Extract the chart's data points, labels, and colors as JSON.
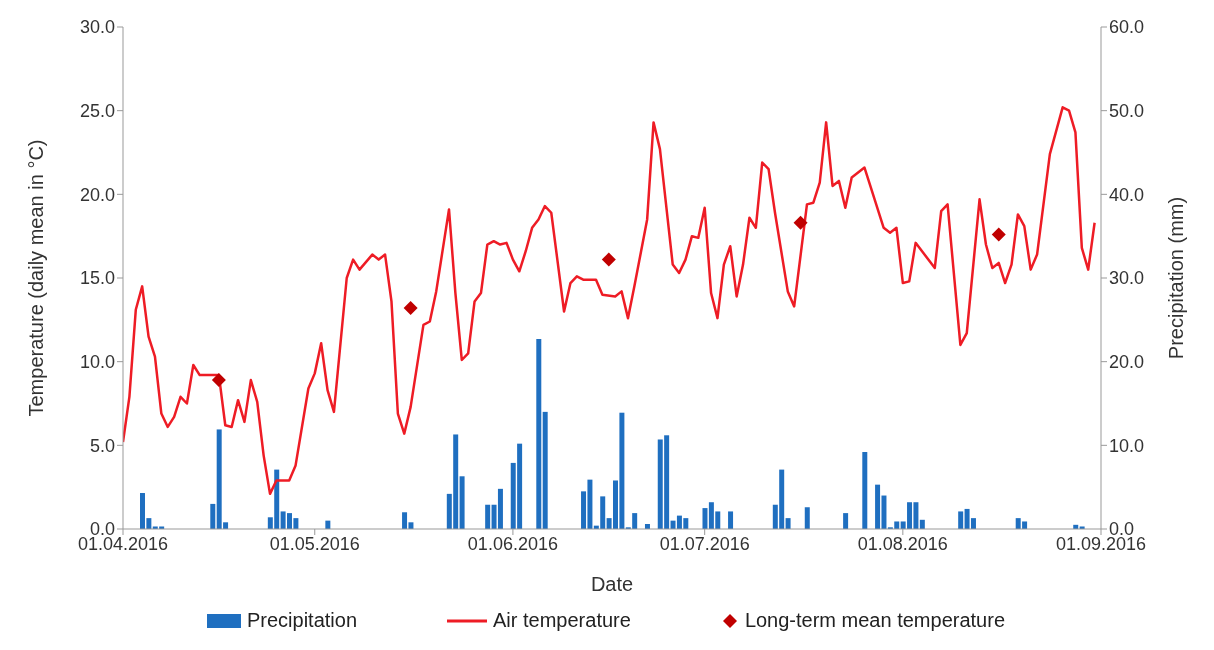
{
  "chart_data": {
    "type": "line",
    "xlabel": "Date",
    "ylabel": "Temperature (daily mean in °C)",
    "y2label": "Precipitation (mm)",
    "xlim": [
      "2016-04-01",
      "2016-09-01"
    ],
    "xticks": [
      {
        "value": "2016-04-01",
        "label": "01.04.2016"
      },
      {
        "value": "2016-05-01",
        "label": "01.05.2016"
      },
      {
        "value": "2016-06-01",
        "label": "01.06.2016"
      },
      {
        "value": "2016-07-01",
        "label": "01.07.2016"
      },
      {
        "value": "2016-08-01",
        "label": "01.08.2016"
      },
      {
        "value": "2016-09-01",
        "label": "01.09.2016"
      }
    ],
    "ylim": [
      0,
      30
    ],
    "yticks": [
      {
        "value": 0,
        "label": "0.0"
      },
      {
        "value": 5,
        "label": "5.0"
      },
      {
        "value": 10,
        "label": "10.0"
      },
      {
        "value": 15,
        "label": "15.0"
      },
      {
        "value": 20,
        "label": "20.0"
      },
      {
        "value": 25,
        "label": "25.0"
      },
      {
        "value": 30,
        "label": "30.0"
      }
    ],
    "y2lim": [
      0,
      60
    ],
    "y2ticks": [
      {
        "value": 0,
        "label": "0.0"
      },
      {
        "value": 10,
        "label": "10.0"
      },
      {
        "value": 20,
        "label": "20.0"
      },
      {
        "value": 30,
        "label": "30.0"
      },
      {
        "value": 40,
        "label": "40.0"
      },
      {
        "value": 50,
        "label": "50.0"
      },
      {
        "value": 60,
        "label": "60.0"
      }
    ],
    "grid": false,
    "legend": "bottom",
    "series": [
      {
        "name": "Precipitation",
        "type": "bar",
        "axis": "y2",
        "color": "#1f6fc0",
        "x": [
          "2016-04-04",
          "2016-04-05",
          "2016-04-06",
          "2016-04-07",
          "2016-04-15",
          "2016-04-16",
          "2016-04-17",
          "2016-04-24",
          "2016-04-25",
          "2016-04-26",
          "2016-04-27",
          "2016-04-28",
          "2016-05-03",
          "2016-05-15",
          "2016-05-16",
          "2016-05-22",
          "2016-05-23",
          "2016-05-24",
          "2016-05-28",
          "2016-05-29",
          "2016-05-30",
          "2016-06-01",
          "2016-06-02",
          "2016-06-05",
          "2016-06-06",
          "2016-06-12",
          "2016-06-13",
          "2016-06-14",
          "2016-06-15",
          "2016-06-16",
          "2016-06-17",
          "2016-06-18",
          "2016-06-19",
          "2016-06-20",
          "2016-06-22",
          "2016-06-24",
          "2016-06-25",
          "2016-06-26",
          "2016-06-27",
          "2016-06-28",
          "2016-07-01",
          "2016-07-02",
          "2016-07-03",
          "2016-07-05",
          "2016-07-12",
          "2016-07-13",
          "2016-07-14",
          "2016-07-17",
          "2016-07-23",
          "2016-07-26",
          "2016-07-28",
          "2016-07-29",
          "2016-07-30",
          "2016-07-31",
          "2016-08-01",
          "2016-08-02",
          "2016-08-03",
          "2016-08-04",
          "2016-08-10",
          "2016-08-11",
          "2016-08-12",
          "2016-08-19",
          "2016-08-20",
          "2016-08-28",
          "2016-08-29"
        ],
        "values": [
          4.3,
          1.3,
          0.3,
          0.3,
          3.0,
          11.9,
          0.8,
          1.4,
          7.1,
          2.1,
          1.9,
          1.3,
          1.0,
          2.0,
          0.8,
          4.2,
          11.3,
          6.3,
          2.9,
          2.9,
          4.8,
          7.9,
          10.2,
          22.7,
          14.0,
          4.5,
          5.9,
          0.4,
          3.9,
          1.3,
          5.8,
          13.9,
          0.2,
          1.9,
          0.6,
          10.7,
          11.2,
          1.0,
          1.6,
          1.3,
          2.5,
          3.2,
          2.1,
          2.1,
          2.9,
          7.1,
          1.3,
          2.6,
          1.9,
          9.2,
          5.3,
          4.0,
          0.2,
          0.9,
          0.9,
          3.2,
          3.2,
          1.1,
          2.1,
          2.4,
          1.3,
          1.3,
          0.9,
          0.5,
          0.3
        ]
      },
      {
        "name": "Air temperature",
        "color": "#ee1c25",
        "line_style": "solid",
        "marker": "none",
        "x": [
          "2016-04-01",
          "2016-04-02",
          "2016-04-03",
          "2016-04-04",
          "2016-04-05",
          "2016-04-06",
          "2016-04-07",
          "2016-04-08",
          "2016-04-09",
          "2016-04-10",
          "2016-04-11",
          "2016-04-12",
          "2016-04-13",
          "2016-04-14",
          "2016-04-16",
          "2016-04-17",
          "2016-04-18",
          "2016-04-19",
          "2016-04-20",
          "2016-04-21",
          "2016-04-22",
          "2016-04-23",
          "2016-04-24",
          "2016-04-25",
          "2016-04-27",
          "2016-04-28",
          "2016-04-30",
          "2016-05-01",
          "2016-05-02",
          "2016-05-03",
          "2016-05-04",
          "2016-05-06",
          "2016-05-07",
          "2016-05-08",
          "2016-05-10",
          "2016-05-11",
          "2016-05-12",
          "2016-05-13",
          "2016-05-14",
          "2016-05-15",
          "2016-05-16",
          "2016-05-18",
          "2016-05-19",
          "2016-05-20",
          "2016-05-22",
          "2016-05-23",
          "2016-05-24",
          "2016-05-25",
          "2016-05-26",
          "2016-05-27",
          "2016-05-28",
          "2016-05-29",
          "2016-05-30",
          "2016-05-31",
          "2016-06-01",
          "2016-06-02",
          "2016-06-03",
          "2016-06-04",
          "2016-06-05",
          "2016-06-06",
          "2016-06-07",
          "2016-06-09",
          "2016-06-10",
          "2016-06-11",
          "2016-06-12",
          "2016-06-14",
          "2016-06-15",
          "2016-06-17",
          "2016-06-18",
          "2016-06-19",
          "2016-06-20",
          "2016-06-22",
          "2016-06-23",
          "2016-06-24",
          "2016-06-26",
          "2016-06-27",
          "2016-06-28",
          "2016-06-29",
          "2016-06-30",
          "2016-07-01",
          "2016-07-02",
          "2016-07-03",
          "2016-07-04",
          "2016-07-05",
          "2016-07-06",
          "2016-07-07",
          "2016-07-08",
          "2016-07-09",
          "2016-07-10",
          "2016-07-11",
          "2016-07-12",
          "2016-07-14",
          "2016-07-15",
          "2016-07-17",
          "2016-07-18",
          "2016-07-19",
          "2016-07-20",
          "2016-07-21",
          "2016-07-22",
          "2016-07-23",
          "2016-07-24",
          "2016-07-26",
          "2016-07-27",
          "2016-07-29",
          "2016-07-30",
          "2016-07-31",
          "2016-08-01",
          "2016-08-02",
          "2016-08-03",
          "2016-08-06",
          "2016-08-07",
          "2016-08-08",
          "2016-08-10",
          "2016-08-11",
          "2016-08-13",
          "2016-08-14",
          "2016-08-15",
          "2016-08-16",
          "2016-08-17",
          "2016-08-18",
          "2016-08-19",
          "2016-08-20",
          "2016-08-21",
          "2016-08-22",
          "2016-08-24",
          "2016-08-26",
          "2016-08-27",
          "2016-08-28",
          "2016-08-29",
          "2016-08-30",
          "2016-08-31"
        ],
        "values": [
          5.2,
          7.9,
          13.1,
          14.5,
          11.5,
          10.3,
          6.9,
          6.1,
          6.7,
          7.9,
          7.5,
          9.8,
          9.2,
          9.2,
          9.2,
          6.2,
          6.1,
          7.7,
          6.4,
          8.9,
          7.6,
          4.4,
          2.1,
          2.9,
          2.9,
          3.8,
          8.4,
          9.3,
          11.1,
          8.3,
          7.0,
          15.0,
          16.1,
          15.5,
          16.4,
          16.1,
          16.4,
          13.6,
          6.9,
          5.7,
          7.3,
          12.2,
          12.4,
          14.2,
          19.1,
          14.1,
          10.1,
          10.5,
          13.6,
          14.1,
          17.0,
          17.2,
          17.0,
          17.1,
          16.1,
          15.4,
          16.6,
          18.0,
          18.5,
          19.3,
          18.9,
          13.0,
          14.7,
          15.1,
          14.9,
          14.9,
          14.0,
          13.9,
          14.2,
          12.6,
          14.5,
          18.5,
          24.3,
          22.7,
          15.8,
          15.3,
          16.1,
          17.5,
          17.4,
          19.2,
          14.1,
          12.6,
          15.8,
          16.9,
          13.9,
          15.8,
          18.6,
          18.0,
          21.9,
          21.5,
          18.9,
          14.2,
          13.3,
          19.4,
          19.5,
          20.7,
          24.3,
          20.5,
          20.8,
          19.2,
          21.0,
          21.6,
          20.4,
          18.0,
          17.7,
          18.0,
          14.7,
          14.8,
          17.1,
          15.6,
          19.0,
          19.4,
          11.0,
          11.7,
          19.7,
          17.0,
          15.6,
          15.9,
          14.7,
          15.8,
          18.8,
          18.1,
          15.5,
          16.4,
          22.4,
          25.2,
          25.0,
          23.7,
          16.8,
          15.5,
          18.3
        ]
      },
      {
        "name": "Long-term mean temperature",
        "type": "scatter",
        "color": "#c00000",
        "marker": "diamond",
        "x": [
          "2016-04-16",
          "2016-05-16",
          "2016-06-16",
          "2016-07-16",
          "2016-08-16"
        ],
        "values": [
          8.9,
          13.2,
          16.1,
          18.3,
          17.6
        ]
      }
    ]
  }
}
